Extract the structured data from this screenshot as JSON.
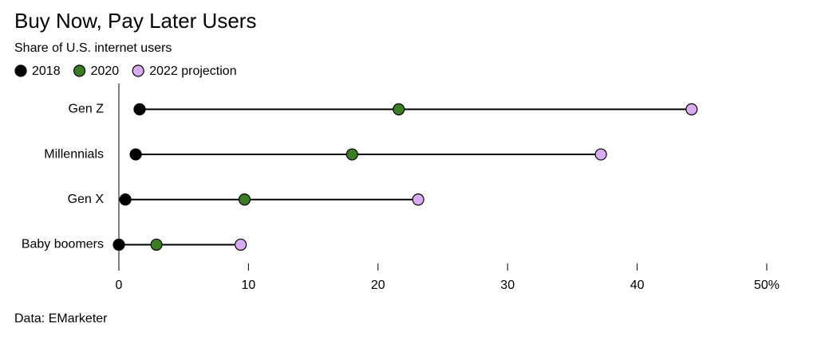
{
  "chart_data": {
    "type": "dumbbell",
    "title": "Buy Now, Pay Later Users",
    "subtitle": "Share of U.S. internet users",
    "categories": [
      "Gen Z",
      "Millennials",
      "Gen X",
      "Baby boomers"
    ],
    "series": [
      {
        "name": "2018",
        "color": "#000000",
        "values": [
          1.6,
          1.3,
          0.5,
          0
        ]
      },
      {
        "name": "2020",
        "color": "#3a7d23",
        "values": [
          21.6,
          18.0,
          9.7,
          2.9
        ]
      },
      {
        "name": "2022 projection",
        "color": "#d9abf0",
        "values": [
          44.2,
          37.2,
          23.1,
          9.4
        ]
      }
    ],
    "xlim": [
      0,
      50
    ],
    "xticks": [
      0,
      10,
      20,
      30,
      40,
      {
        "value": 50,
        "label": "50%"
      }
    ],
    "legend": "top-left",
    "source": "Data: EMarketer"
  }
}
